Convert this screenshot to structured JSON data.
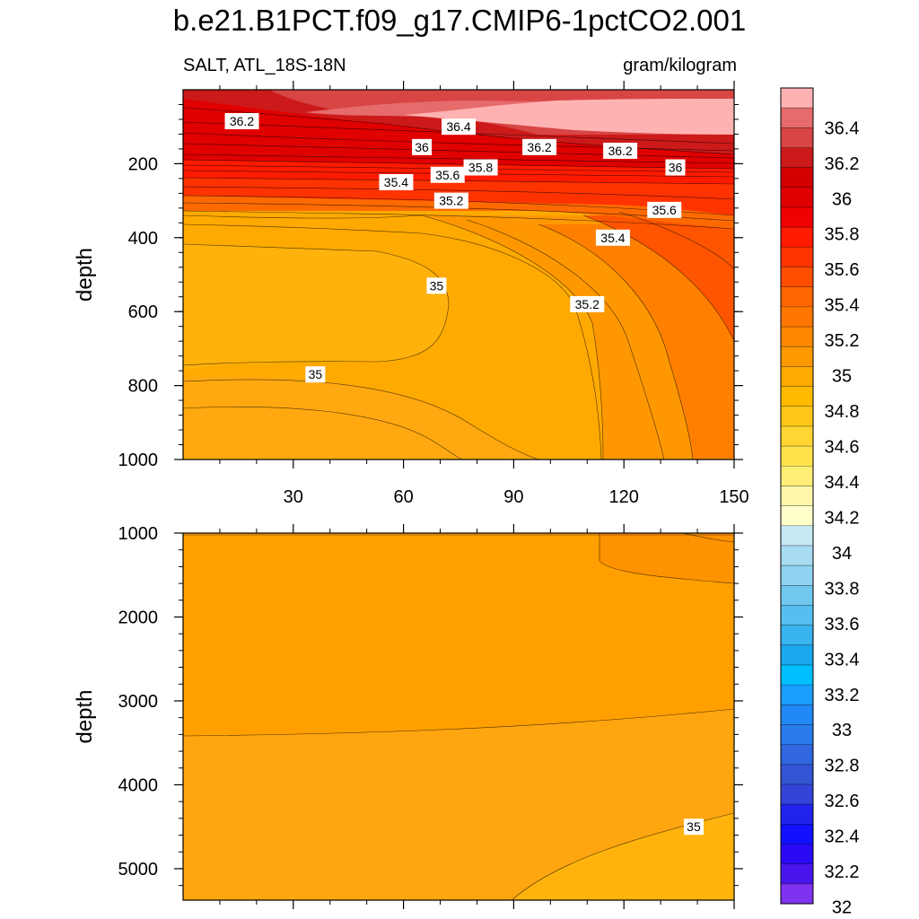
{
  "title": "b.e21.B1PCT.f09_g17.CMIP6-1pctCO2.001",
  "subtitle_left": "SALT, ATL_18S-18N",
  "subtitle_right": "gram/kilogram",
  "colorbar": {
    "labels": [
      "36.4",
      "36.2",
      "36",
      "35.8",
      "35.6",
      "35.4",
      "35.2",
      "35",
      "34.8",
      "34.6",
      "34.4",
      "34.2",
      "34",
      "33.8",
      "33.6",
      "33.4",
      "33.2",
      "33",
      "32.8",
      "32.6",
      "32.4",
      "32.2",
      "32"
    ],
    "colors": [
      "#ffb2b2",
      "#e66b6b",
      "#d84545",
      "#cc1a1a",
      "#d40000",
      "#e00000",
      "#f00000",
      "#ff1a00",
      "#ff3300",
      "#ff4d00",
      "#ff6600",
      "#ff7700",
      "#ff8800",
      "#ff9900",
      "#ffaa00",
      "#ffbb00",
      "#ffc61a",
      "#ffd633",
      "#ffe34d",
      "#ffee77",
      "#fff6aa",
      "#ffffcc",
      "#c6e8f5",
      "#a8dcf2",
      "#8fd3f0",
      "#70c8ee",
      "#55bfef",
      "#38b4ef",
      "#1aa9ef",
      "#00bfff",
      "#1a9fff",
      "#2288f5",
      "#2a7aea",
      "#3066df",
      "#3355d4",
      "#3344d8",
      "#2222ee",
      "#1111ff",
      "#2a0af5",
      "#4a14ec",
      "#7f32f0"
    ]
  },
  "chart_data": [
    {
      "type": "heatmap",
      "panel": "upper",
      "variable": "SALT",
      "region": "ATL_18S-18N",
      "units": "gram/kilogram",
      "xlabel": "",
      "ylabel": "depth",
      "x_ticks": [
        "30",
        "60",
        "90",
        "120",
        "150"
      ],
      "x_tick_values": [
        30,
        60,
        90,
        120,
        150
      ],
      "y_ticks": [
        "200",
        "400",
        "600",
        "800",
        "1000"
      ],
      "y_tick_values": [
        200,
        400,
        600,
        800,
        1000
      ],
      "xlim": [
        0,
        150
      ],
      "ylim": [
        0,
        1000
      ],
      "contour_interval": 0.1,
      "contour_labels": [
        {
          "text": "36.2",
          "x": 16,
          "y": 85
        },
        {
          "text": "36.4",
          "x": 75,
          "y": 100
        },
        {
          "text": "36",
          "x": 65,
          "y": 155
        },
        {
          "text": "36.2",
          "x": 97,
          "y": 155
        },
        {
          "text": "36.2",
          "x": 119,
          "y": 165
        },
        {
          "text": "36",
          "x": 134,
          "y": 210
        },
        {
          "text": "35.8",
          "x": 81,
          "y": 210
        },
        {
          "text": "35.6",
          "x": 72,
          "y": 230
        },
        {
          "text": "35.4",
          "x": 58,
          "y": 250
        },
        {
          "text": "35.2",
          "x": 73,
          "y": 300
        },
        {
          "text": "35.6",
          "x": 131,
          "y": 325
        },
        {
          "text": "35.4",
          "x": 117,
          "y": 400
        },
        {
          "text": "35",
          "x": 69,
          "y": 530
        },
        {
          "text": "35.2",
          "x": 110,
          "y": 580
        },
        {
          "text": "35",
          "x": 36,
          "y": 770
        }
      ]
    },
    {
      "type": "heatmap",
      "panel": "lower",
      "variable": "SALT",
      "units": "gram/kilogram",
      "xlabel": "",
      "ylabel": "depth",
      "x_tick_values": [
        30,
        60,
        90,
        120,
        150
      ],
      "y_ticks": [
        "1000",
        "2000",
        "3000",
        "4000",
        "5000"
      ],
      "y_tick_values": [
        1000,
        2000,
        3000,
        4000,
        5000
      ],
      "xlim": [
        0,
        150
      ],
      "ylim": [
        1000,
        5375
      ],
      "contour_labels": [
        {
          "text": "35",
          "x": 139,
          "y": 4500
        }
      ]
    }
  ]
}
